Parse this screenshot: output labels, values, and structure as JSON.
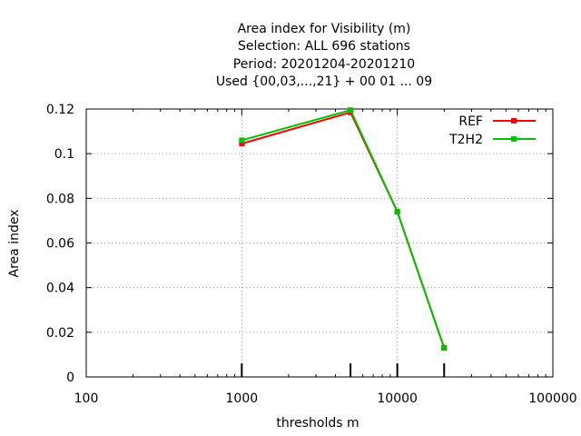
{
  "chart_data": {
    "type": "line",
    "title_lines": [
      "Area index  for Visibility (m)",
      "Selection: ALL    696 stations",
      "Period: 20201204-20201210",
      "Used {00,03,...,21} + 00 01 ... 09"
    ],
    "xlabel": "thresholds m",
    "ylabel": "Area index",
    "x_scale": "log",
    "xlim": [
      100,
      100000
    ],
    "ylim": [
      0,
      0.12
    ],
    "x_ticks": [
      100,
      1000,
      10000,
      100000
    ],
    "x_tick_labels": [
      "100",
      "1000",
      "10000",
      "100000"
    ],
    "y_ticks": [
      0,
      0.02,
      0.04,
      0.06,
      0.08,
      0.1,
      0.12
    ],
    "y_tick_labels": [
      "0",
      "0.02",
      "0.04",
      "0.06",
      "0.08",
      "0.1",
      "0.12"
    ],
    "grid": true,
    "legend_position": "top-right",
    "threshold_markers": [
      1000,
      5000,
      10000,
      20000
    ],
    "x": [
      1000,
      5000,
      10000,
      20000
    ],
    "series": [
      {
        "name": "REF",
        "color": "#ff0000",
        "values": [
          0.1045,
          0.1185,
          0.074,
          0.013
        ]
      },
      {
        "name": "T2H2",
        "color": "#00c000",
        "values": [
          0.106,
          0.1195,
          0.074,
          0.013
        ]
      }
    ]
  }
}
